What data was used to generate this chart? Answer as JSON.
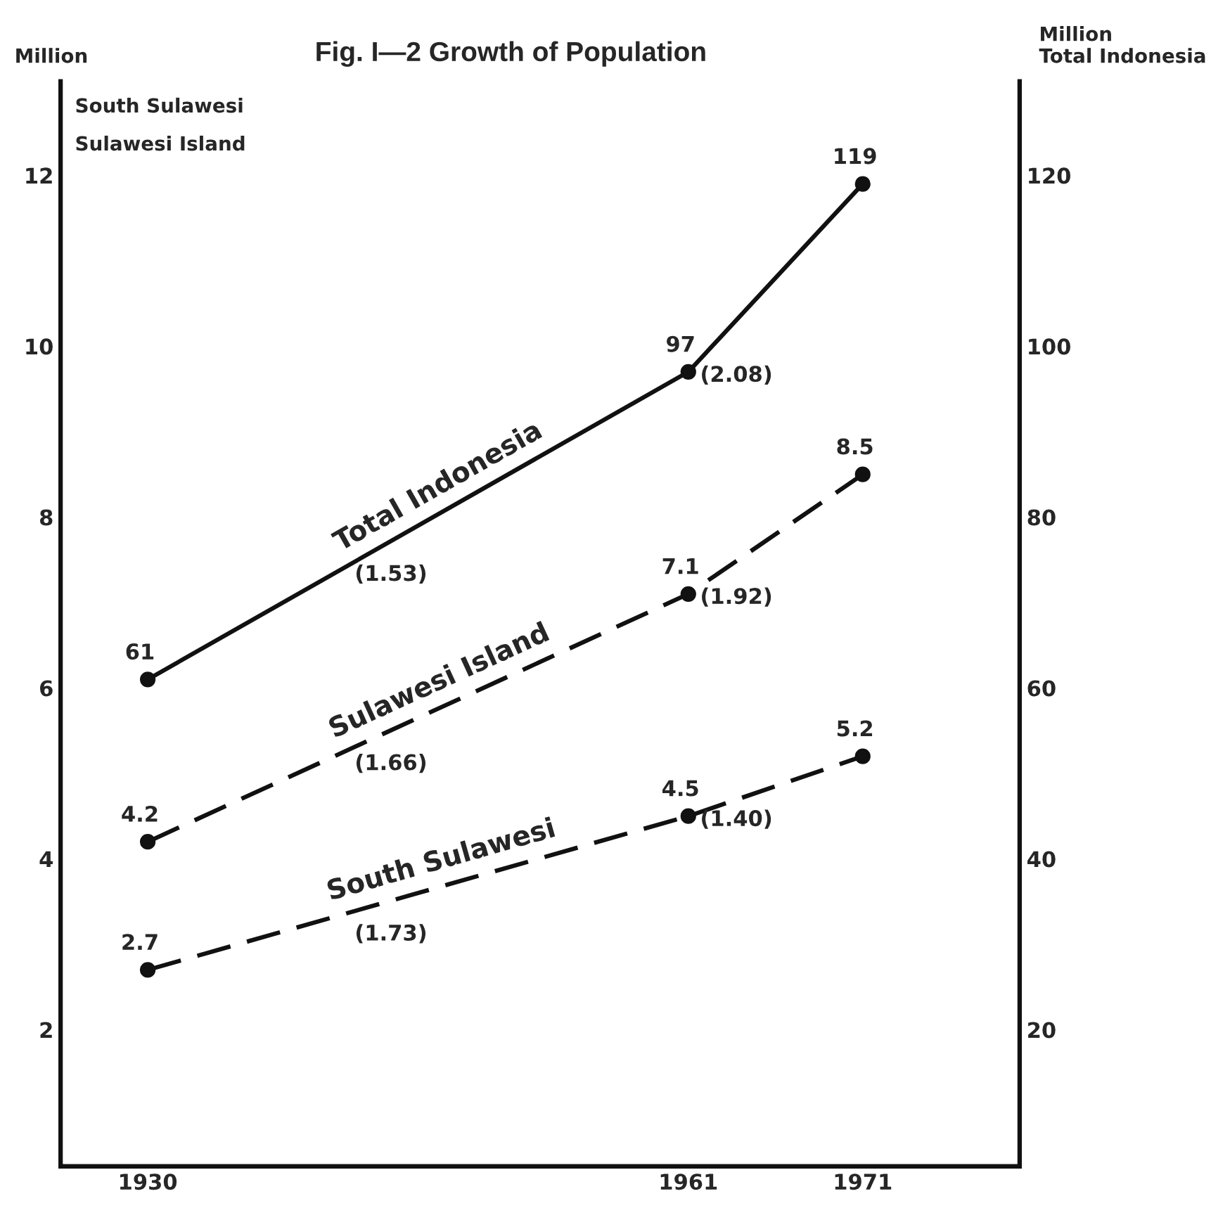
{
  "chart_data": {
    "type": "line",
    "title": "Fig. I—2 Growth of Population",
    "ylabel": "Million",
    "y2label": "Million\nTotal Indonesia",
    "x": [
      1930,
      1961,
      1971
    ],
    "xlim": [
      1925,
      1980
    ],
    "xticks": [
      1930,
      1961,
      1971
    ],
    "ylim": [
      0.4,
      13.1
    ],
    "yticks": [
      2,
      4,
      6,
      8,
      10,
      12
    ],
    "y2lim": [
      4,
      131
    ],
    "y2ticks": [
      20,
      40,
      60,
      80,
      100,
      120
    ],
    "series": [
      {
        "name": "Total Indonesia",
        "color": "#111111",
        "values": [
          61,
          97,
          119
        ],
        "axis": "y2",
        "line_style": "solid"
      },
      {
        "name": "Sulawesi Island",
        "color": "#111111",
        "values": [
          4.2,
          7.1,
          8.5
        ],
        "line_style": "dashed"
      },
      {
        "name": "South Sulawesi",
        "color": "#111111",
        "values": [
          2.7,
          4.5,
          5.2
        ],
        "line_style": "dashed"
      }
    ],
    "data_labels": true,
    "marker": "circle",
    "grid": false,
    "annotations": [
      "South Sulawesi",
      "Sulawesi Island",
      "(1.53)",
      "(2.08)",
      "(1.66)",
      "(1.92)",
      "(1.73)",
      "(1.40)"
    ]
  }
}
